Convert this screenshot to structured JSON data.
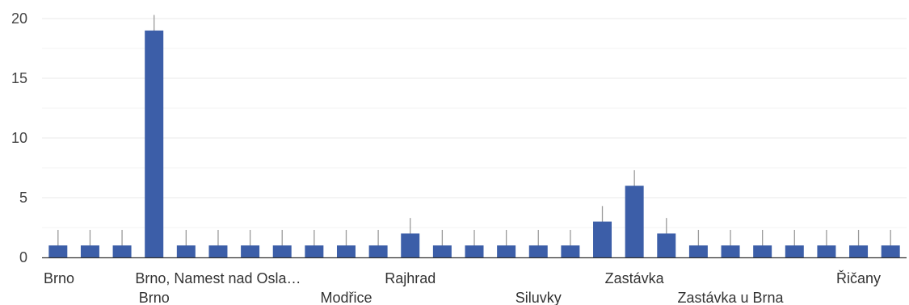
{
  "chart_data": {
    "type": "bar",
    "categories": [
      "Brno",
      "",
      "",
      "Brno",
      "",
      "Brno, Namest nad Osla…",
      "",
      "",
      "",
      "Modřice",
      "",
      "Rajhrad",
      "",
      "",
      "",
      "Siluvky",
      "",
      "",
      "Zastávka",
      "",
      "",
      "Zastávka u Brna",
      "",
      "",
      "",
      "Řičany",
      ""
    ],
    "values": [
      1,
      1,
      1,
      19,
      1,
      1,
      1,
      1,
      1,
      1,
      1,
      2,
      1,
      1,
      1,
      1,
      1,
      3,
      6,
      2,
      1,
      1,
      1,
      1,
      1,
      1,
      1
    ],
    "title": "",
    "xlabel": "",
    "ylabel": "",
    "ylim": [
      0,
      20
    ],
    "yticks": [
      "0",
      "5",
      "10",
      "15",
      "20"
    ],
    "grid": true,
    "error_bars": true,
    "colors": {
      "bar": "#3c5ea8",
      "grid": "#e8e8e8",
      "minor_grid": "#f3f3f3",
      "axis": "#333333",
      "error": "#9a9a9a"
    }
  }
}
